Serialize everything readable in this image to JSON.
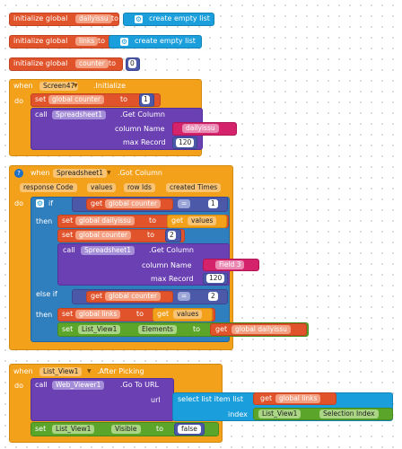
{
  "globals": [
    {
      "kw": "initialize global",
      "name": "dailyissu",
      "to": "to",
      "value": "create empty list"
    },
    {
      "kw": "initialize global",
      "name": "links",
      "to": "to",
      "value": "create empty list"
    },
    {
      "kw": "initialize global",
      "name": "counter",
      "to": "to",
      "value": "0"
    }
  ],
  "initialize": {
    "when": "when",
    "component": "Screen47",
    "event": ".Initialize",
    "do": "do",
    "set": "set",
    "var": "global counter",
    "to": "to",
    "num": "1",
    "call": "call",
    "obj": "Spreadsheet1",
    "method": ".Get Column",
    "col_label": "column Name",
    "col_value": "dailyissu",
    "max_label": "max Record",
    "max_value": "120"
  },
  "got_column": {
    "when": "when",
    "component": "Spreadsheet1",
    "event": ".Got Column",
    "params": [
      "response Code",
      "values",
      "row Ids",
      "created Times"
    ],
    "do": "do",
    "if": "if",
    "then": "then",
    "elseif": "else if",
    "then2": "then",
    "get": "get",
    "counter": "global counter",
    "eq": "=",
    "one": "1",
    "two": "2",
    "set": "set",
    "dailyissu": "global dailyissu",
    "to": "to",
    "values": "values",
    "call": "call",
    "obj": "Spreadsheet1",
    "method": ".Get Column",
    "col_label": "column Name",
    "col_value": "Field 3",
    "max_label": "max Record",
    "max_value": "120",
    "links": "global links",
    "listview": "List_View1",
    "elements": "Elements"
  },
  "after_picking": {
    "when": "when",
    "component": "List_View1",
    "event": ".After Picking",
    "do": "do",
    "call": "call",
    "obj": "Web_Viewer1",
    "method": ".Go To URL",
    "url": "url",
    "select": "select list item  list",
    "get": "get",
    "links": "global links",
    "index": "index",
    "listview": "List_View1",
    "selindex": "Selection Index",
    "set": "set",
    "visible": "Visible",
    "to": "to",
    "false": "false"
  }
}
